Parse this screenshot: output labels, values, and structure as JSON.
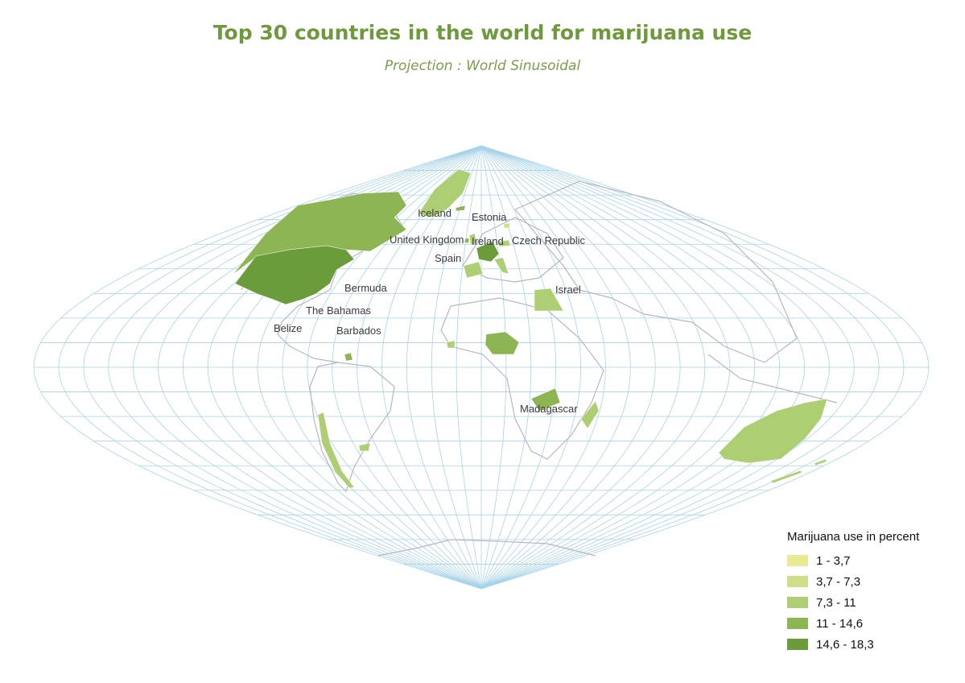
{
  "title": "Top 30 countries in the world for marijuana use",
  "subtitle": "Projection : World Sinusoidal",
  "colors": {
    "graticule": "#a7d3ea",
    "border": "#b7b7bf",
    "title": "#6e9a3c"
  },
  "country_labels": [
    "Iceland",
    "Estonia",
    "United Kingdom",
    "Ireland",
    "Czech Republic",
    "Spain",
    "Israel",
    "Bermuda",
    "The Bahamas",
    "Belize",
    "Barbados",
    "Madagascar"
  ],
  "legend": {
    "title": "Marijuana use in percent",
    "items": [
      {
        "label": "1 - 3,7",
        "color": "#e9eb94"
      },
      {
        "label": "3,7 - 7,3",
        "color": "#cfdf89"
      },
      {
        "label": "7,3 - 11",
        "color": "#aece73"
      },
      {
        "label": "11 - 14,6",
        "color": "#8db553"
      },
      {
        "label": "14,6 - 18,3",
        "color": "#6a9c3c"
      }
    ]
  }
}
